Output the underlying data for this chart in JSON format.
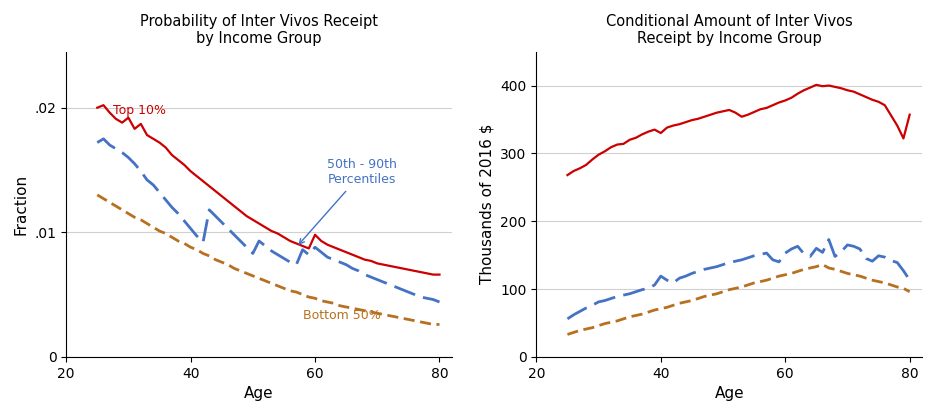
{
  "title_left": "Probability of Inter Vivos Receipt\nby Income Group",
  "title_right": "Conditional Amount of Inter Vivos\nReceipt by Income Group",
  "xlabel": "Age",
  "ylabel_left": "Fraction",
  "ylabel_right": "Thousands of 2016 $",
  "xlim": [
    20,
    82
  ],
  "xticks": [
    20,
    40,
    60,
    80
  ],
  "ylim_left": [
    0,
    0.0245
  ],
  "yticks_left": [
    0,
    0.01,
    0.02
  ],
  "ytick_labels_left": [
    "0",
    ".01",
    ".02"
  ],
  "ylim_right": [
    0,
    450
  ],
  "yticks_right": [
    0,
    100,
    200,
    300,
    400
  ],
  "color_top": "#cc0000",
  "color_mid": "#4472c4",
  "color_bot": "#b87020",
  "label_top": "Top 10%",
  "label_mid": "50th - 90th\nPercentiles",
  "label_bot": "Bottom 50%",
  "ages": [
    25,
    26,
    27,
    28,
    29,
    30,
    31,
    32,
    33,
    34,
    35,
    36,
    37,
    38,
    39,
    40,
    41,
    42,
    43,
    44,
    45,
    46,
    47,
    48,
    49,
    50,
    51,
    52,
    53,
    54,
    55,
    56,
    57,
    58,
    59,
    60,
    61,
    62,
    63,
    64,
    65,
    66,
    67,
    68,
    69,
    70,
    71,
    72,
    73,
    74,
    75,
    76,
    77,
    78,
    79,
    80
  ],
  "top10_left": [
    0.02,
    0.0202,
    0.0196,
    0.0191,
    0.0188,
    0.0192,
    0.0183,
    0.0187,
    0.0178,
    0.0175,
    0.0172,
    0.0168,
    0.0162,
    0.0158,
    0.0154,
    0.0149,
    0.0145,
    0.0141,
    0.0137,
    0.0133,
    0.0129,
    0.0125,
    0.0121,
    0.0117,
    0.0113,
    0.011,
    0.0107,
    0.0104,
    0.0101,
    0.0099,
    0.0096,
    0.0093,
    0.0091,
    0.0089,
    0.0087,
    0.0098,
    0.0093,
    0.009,
    0.0088,
    0.0086,
    0.0084,
    0.0082,
    0.008,
    0.0078,
    0.0077,
    0.0075,
    0.0074,
    0.0073,
    0.0072,
    0.0071,
    0.007,
    0.0069,
    0.0068,
    0.0067,
    0.0066,
    0.0066
  ],
  "mid_left": [
    0.0172,
    0.0175,
    0.017,
    0.0167,
    0.0164,
    0.016,
    0.0155,
    0.0149,
    0.0142,
    0.0138,
    0.0132,
    0.0126,
    0.012,
    0.0115,
    0.0109,
    0.0103,
    0.0097,
    0.0092,
    0.0118,
    0.0113,
    0.0108,
    0.0103,
    0.0098,
    0.0093,
    0.0088,
    0.0083,
    0.0093,
    0.0089,
    0.0085,
    0.0082,
    0.0079,
    0.0076,
    0.0074,
    0.0086,
    0.0082,
    0.0088,
    0.0084,
    0.008,
    0.0078,
    0.0076,
    0.0074,
    0.0071,
    0.0069,
    0.0066,
    0.0064,
    0.0062,
    0.006,
    0.0058,
    0.0056,
    0.0054,
    0.0052,
    0.005,
    0.0048,
    0.0047,
    0.0046,
    0.0044
  ],
  "bot_left": [
    0.013,
    0.0127,
    0.0124,
    0.0121,
    0.0118,
    0.0115,
    0.0112,
    0.011,
    0.0107,
    0.0104,
    0.0101,
    0.0099,
    0.0096,
    0.0093,
    0.0091,
    0.0088,
    0.0086,
    0.0083,
    0.0081,
    0.0078,
    0.0076,
    0.0074,
    0.0071,
    0.0069,
    0.0067,
    0.0065,
    0.0063,
    0.0061,
    0.0059,
    0.0057,
    0.0055,
    0.0053,
    0.0052,
    0.005,
    0.0048,
    0.0047,
    0.0045,
    0.0044,
    0.0043,
    0.0041,
    0.004,
    0.0039,
    0.0038,
    0.0037,
    0.0036,
    0.0035,
    0.0034,
    0.0033,
    0.0032,
    0.0031,
    0.003,
    0.0029,
    0.0028,
    0.0027,
    0.0026,
    0.0026
  ],
  "top10_right": [
    268,
    274,
    278,
    283,
    291,
    298,
    303,
    309,
    313,
    314,
    320,
    323,
    328,
    332,
    335,
    330,
    338,
    341,
    343,
    346,
    349,
    351,
    354,
    357,
    360,
    362,
    364,
    360,
    354,
    357,
    361,
    365,
    367,
    371,
    375,
    378,
    382,
    388,
    393,
    397,
    401,
    399,
    400,
    398,
    396,
    393,
    391,
    387,
    383,
    379,
    376,
    371,
    356,
    341,
    322,
    357
  ],
  "mid_right": [
    56,
    62,
    67,
    72,
    76,
    81,
    83,
    86,
    89,
    91,
    93,
    96,
    99,
    101,
    106,
    119,
    113,
    109,
    116,
    119,
    123,
    126,
    129,
    131,
    133,
    136,
    139,
    141,
    143,
    146,
    149,
    151,
    153,
    143,
    140,
    153,
    159,
    163,
    152,
    148,
    160,
    154,
    173,
    148,
    155,
    165,
    163,
    159,
    145,
    141,
    149,
    147,
    142,
    139,
    127,
    113
  ],
  "bot_right": [
    33,
    36,
    39,
    41,
    43,
    46,
    49,
    51,
    53,
    56,
    59,
    61,
    63,
    66,
    69,
    71,
    73,
    76,
    79,
    81,
    83,
    86,
    89,
    91,
    93,
    96,
    99,
    101,
    103,
    106,
    109,
    111,
    113,
    116,
    119,
    121,
    123,
    126,
    129,
    131,
    133,
    136,
    131,
    129,
    126,
    123,
    121,
    119,
    116,
    113,
    111,
    109,
    106,
    103,
    101,
    96
  ]
}
